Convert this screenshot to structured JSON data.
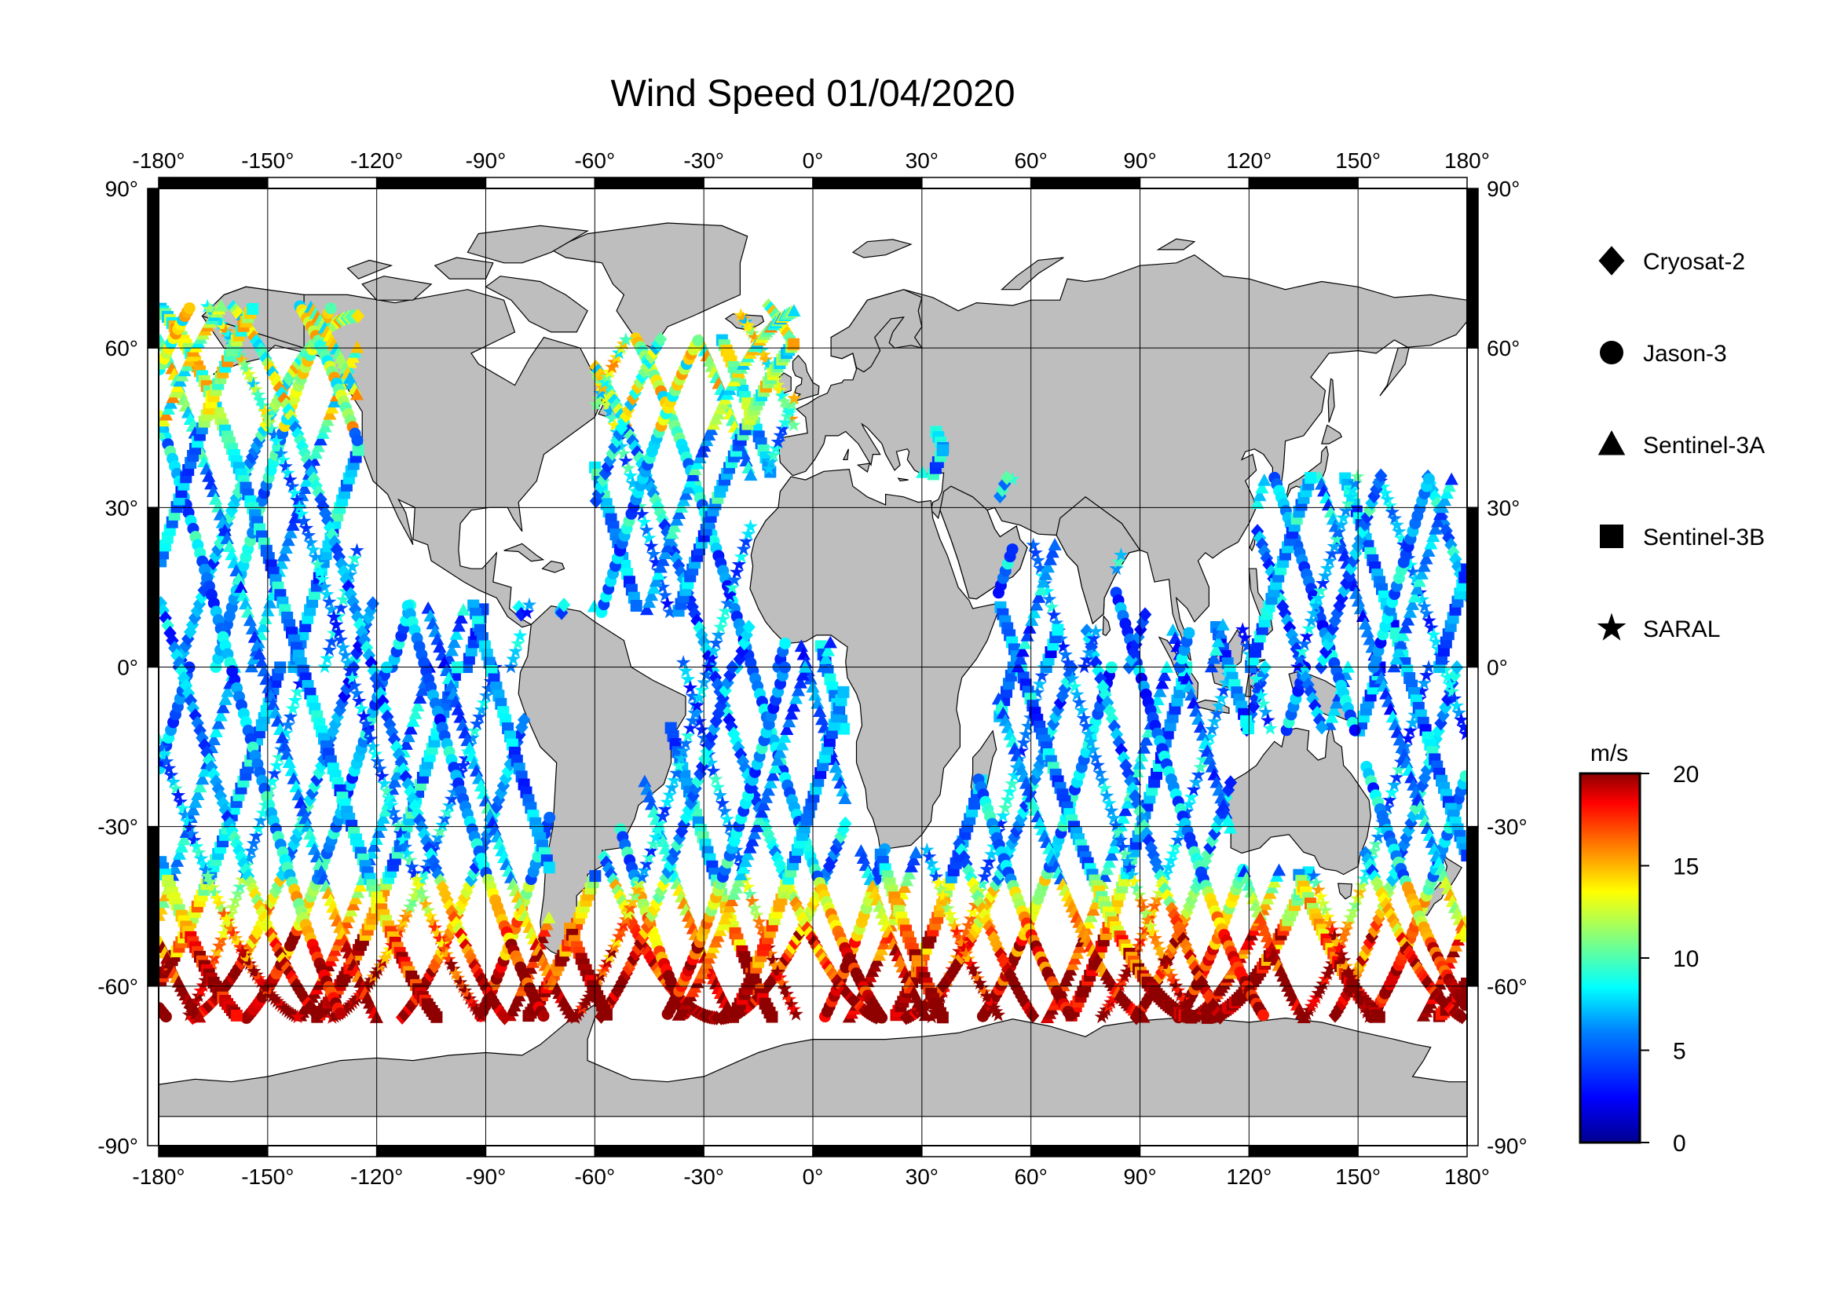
{
  "title": "Wind Speed 01/04/2020",
  "map": {
    "lon_ticks": [
      "-180°",
      "-150°",
      "-120°",
      "-90°",
      "-60°",
      "-30°",
      "0°",
      "30°",
      "60°",
      "90°",
      "120°",
      "150°",
      "180°"
    ],
    "lat_ticks": [
      "90°",
      "60°",
      "30°",
      "0°",
      "-30°",
      "-60°",
      "-90°"
    ],
    "land_color": "#bebebe",
    "ocean_color": "#ffffff"
  },
  "legend": {
    "items": [
      {
        "label": "Cryosat-2",
        "symbol": "diamond"
      },
      {
        "label": "Jason-3",
        "symbol": "circle"
      },
      {
        "label": "Sentinel-3A",
        "symbol": "triangle"
      },
      {
        "label": "Sentinel-3B",
        "symbol": "square"
      },
      {
        "label": "SARAL",
        "symbol": "star"
      }
    ]
  },
  "colorbar": {
    "unit": "m/s",
    "ticks": [
      "20",
      "15",
      "10",
      "5",
      "0"
    ],
    "range": [
      0,
      20
    ],
    "colors": [
      "#00008f",
      "#0000ff",
      "#0080ff",
      "#00ffff",
      "#80ff80",
      "#ffff00",
      "#ff8000",
      "#ff0000",
      "#8f0000"
    ]
  },
  "chart_data": {
    "type": "scatter",
    "title": "Wind Speed 01/04/2020",
    "xlim": [
      -180,
      180
    ],
    "ylim": [
      -90,
      90
    ],
    "value_range": [
      0,
      20
    ],
    "value_unit": "m/s",
    "series": [
      {
        "name": "Cryosat-2",
        "marker": "diamond"
      },
      {
        "name": "Jason-3",
        "marker": "circle"
      },
      {
        "name": "Sentinel-3A",
        "marker": "triangle"
      },
      {
        "name": "Sentinel-3B",
        "marker": "square"
      },
      {
        "name": "SARAL",
        "marker": "star"
      }
    ]
  }
}
